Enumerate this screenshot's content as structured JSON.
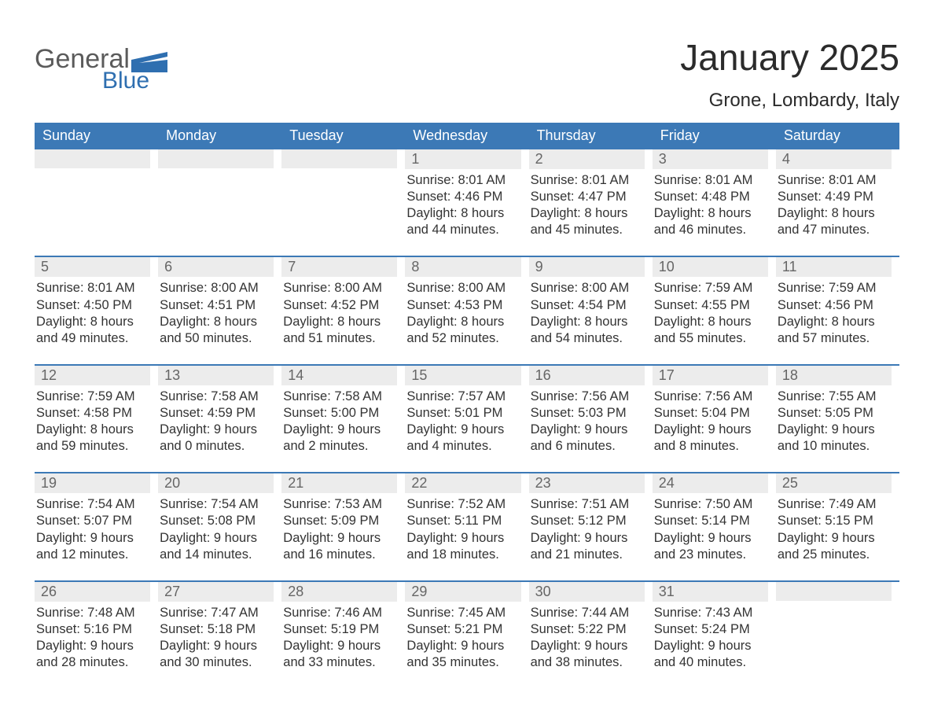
{
  "logo": {
    "word1": "General",
    "word2": "Blue"
  },
  "title": "January 2025",
  "location": "Grone, Lombardy, Italy",
  "colors": {
    "header_blue": "#3c79b6",
    "daynum_bg": "#ececec",
    "daynum_color": "#666666",
    "logo_gray": "#5b5b5b",
    "logo_blue": "#2f6fb0",
    "background": "#ffffff",
    "text": "#333333"
  },
  "weekdays": [
    "Sunday",
    "Monday",
    "Tuesday",
    "Wednesday",
    "Thursday",
    "Friday",
    "Saturday"
  ],
  "weeks": [
    [
      null,
      null,
      null,
      {
        "n": "1",
        "sunrise": "8:01 AM",
        "sunset": "4:46 PM",
        "daylight": "8 hours and 44 minutes."
      },
      {
        "n": "2",
        "sunrise": "8:01 AM",
        "sunset": "4:47 PM",
        "daylight": "8 hours and 45 minutes."
      },
      {
        "n": "3",
        "sunrise": "8:01 AM",
        "sunset": "4:48 PM",
        "daylight": "8 hours and 46 minutes."
      },
      {
        "n": "4",
        "sunrise": "8:01 AM",
        "sunset": "4:49 PM",
        "daylight": "8 hours and 47 minutes."
      }
    ],
    [
      {
        "n": "5",
        "sunrise": "8:01 AM",
        "sunset": "4:50 PM",
        "daylight": "8 hours and 49 minutes."
      },
      {
        "n": "6",
        "sunrise": "8:00 AM",
        "sunset": "4:51 PM",
        "daylight": "8 hours and 50 minutes."
      },
      {
        "n": "7",
        "sunrise": "8:00 AM",
        "sunset": "4:52 PM",
        "daylight": "8 hours and 51 minutes."
      },
      {
        "n": "8",
        "sunrise": "8:00 AM",
        "sunset": "4:53 PM",
        "daylight": "8 hours and 52 minutes."
      },
      {
        "n": "9",
        "sunrise": "8:00 AM",
        "sunset": "4:54 PM",
        "daylight": "8 hours and 54 minutes."
      },
      {
        "n": "10",
        "sunrise": "7:59 AM",
        "sunset": "4:55 PM",
        "daylight": "8 hours and 55 minutes."
      },
      {
        "n": "11",
        "sunrise": "7:59 AM",
        "sunset": "4:56 PM",
        "daylight": "8 hours and 57 minutes."
      }
    ],
    [
      {
        "n": "12",
        "sunrise": "7:59 AM",
        "sunset": "4:58 PM",
        "daylight": "8 hours and 59 minutes."
      },
      {
        "n": "13",
        "sunrise": "7:58 AM",
        "sunset": "4:59 PM",
        "daylight": "9 hours and 0 minutes."
      },
      {
        "n": "14",
        "sunrise": "7:58 AM",
        "sunset": "5:00 PM",
        "daylight": "9 hours and 2 minutes."
      },
      {
        "n": "15",
        "sunrise": "7:57 AM",
        "sunset": "5:01 PM",
        "daylight": "9 hours and 4 minutes."
      },
      {
        "n": "16",
        "sunrise": "7:56 AM",
        "sunset": "5:03 PM",
        "daylight": "9 hours and 6 minutes."
      },
      {
        "n": "17",
        "sunrise": "7:56 AM",
        "sunset": "5:04 PM",
        "daylight": "9 hours and 8 minutes."
      },
      {
        "n": "18",
        "sunrise": "7:55 AM",
        "sunset": "5:05 PM",
        "daylight": "9 hours and 10 minutes."
      }
    ],
    [
      {
        "n": "19",
        "sunrise": "7:54 AM",
        "sunset": "5:07 PM",
        "daylight": "9 hours and 12 minutes."
      },
      {
        "n": "20",
        "sunrise": "7:54 AM",
        "sunset": "5:08 PM",
        "daylight": "9 hours and 14 minutes."
      },
      {
        "n": "21",
        "sunrise": "7:53 AM",
        "sunset": "5:09 PM",
        "daylight": "9 hours and 16 minutes."
      },
      {
        "n": "22",
        "sunrise": "7:52 AM",
        "sunset": "5:11 PM",
        "daylight": "9 hours and 18 minutes."
      },
      {
        "n": "23",
        "sunrise": "7:51 AM",
        "sunset": "5:12 PM",
        "daylight": "9 hours and 21 minutes."
      },
      {
        "n": "24",
        "sunrise": "7:50 AM",
        "sunset": "5:14 PM",
        "daylight": "9 hours and 23 minutes."
      },
      {
        "n": "25",
        "sunrise": "7:49 AM",
        "sunset": "5:15 PM",
        "daylight": "9 hours and 25 minutes."
      }
    ],
    [
      {
        "n": "26",
        "sunrise": "7:48 AM",
        "sunset": "5:16 PM",
        "daylight": "9 hours and 28 minutes."
      },
      {
        "n": "27",
        "sunrise": "7:47 AM",
        "sunset": "5:18 PM",
        "daylight": "9 hours and 30 minutes."
      },
      {
        "n": "28",
        "sunrise": "7:46 AM",
        "sunset": "5:19 PM",
        "daylight": "9 hours and 33 minutes."
      },
      {
        "n": "29",
        "sunrise": "7:45 AM",
        "sunset": "5:21 PM",
        "daylight": "9 hours and 35 minutes."
      },
      {
        "n": "30",
        "sunrise": "7:44 AM",
        "sunset": "5:22 PM",
        "daylight": "9 hours and 38 minutes."
      },
      {
        "n": "31",
        "sunrise": "7:43 AM",
        "sunset": "5:24 PM",
        "daylight": "9 hours and 40 minutes."
      },
      null
    ]
  ]
}
